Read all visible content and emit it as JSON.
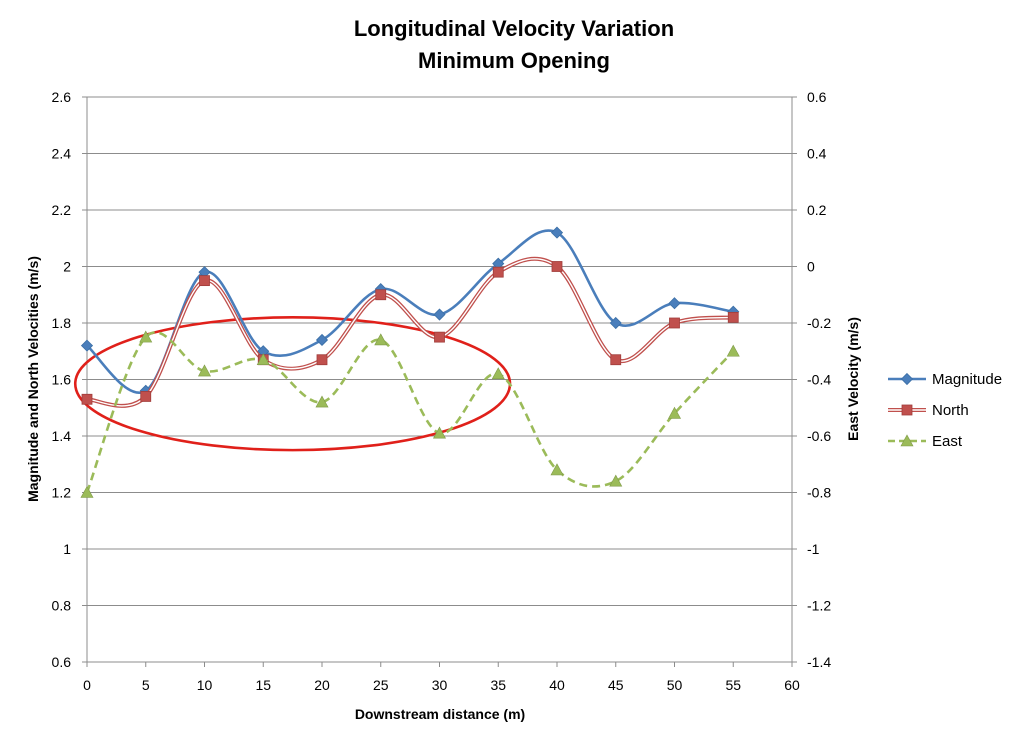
{
  "chart_data": {
    "type": "line",
    "title": [
      "Longitudinal Velocity Variation",
      "Minimum Opening"
    ],
    "xlabel": "Downstream distance (m)",
    "ylabel": "Magnitude and North Velocities (m/s)",
    "y2label": "East Velocity (m/s)",
    "xlim": [
      0,
      60
    ],
    "ylim": [
      0.6,
      2.6
    ],
    "y2lim": [
      -1.4,
      0.6
    ],
    "x_ticks": [
      0,
      5,
      10,
      15,
      20,
      25,
      30,
      35,
      40,
      45,
      50,
      55,
      60
    ],
    "y_ticks": [
      0.6,
      0.8,
      1,
      1.2,
      1.4,
      1.6,
      1.8,
      2,
      2.2,
      2.4,
      2.6
    ],
    "y2_ticks": [
      -1.4,
      -1.2,
      -1,
      -0.8,
      -0.6,
      -0.4,
      -0.2,
      0,
      0.2,
      0.4,
      0.6
    ],
    "x_tick_labels": [
      "0",
      "5",
      "10",
      "15",
      "20",
      "25",
      "30",
      "35",
      "40",
      "45",
      "50",
      "55",
      "60"
    ],
    "y_tick_labels": [
      "0.6",
      "0.8",
      "1",
      "1.2",
      "1.4",
      "1.6",
      "1.8",
      "2",
      "2.2",
      "2.4",
      "2.6"
    ],
    "y2_tick_labels": [
      "-1.4",
      "-1.2",
      "-1",
      "-0.8",
      "-0.6",
      "-0.4",
      "-0.2",
      "0",
      "0.2",
      "0.4",
      "0.6"
    ],
    "grid": "horizontal",
    "legend_position": "right",
    "series": [
      {
        "name": "Magnitude",
        "axis": "left",
        "marker": "diamond",
        "color": "#4a7ebb",
        "line_style": "solid",
        "x": [
          0,
          5,
          10,
          15,
          20,
          25,
          30,
          35,
          40,
          45,
          50,
          55
        ],
        "values": [
          1.72,
          1.56,
          1.98,
          1.7,
          1.74,
          1.92,
          1.83,
          2.01,
          2.12,
          1.8,
          1.87,
          1.84
        ]
      },
      {
        "name": "North",
        "axis": "left",
        "marker": "square",
        "color": "#c0504d",
        "line_style": "double",
        "x": [
          0,
          5,
          10,
          15,
          20,
          25,
          30,
          35,
          40,
          45,
          50,
          55
        ],
        "values": [
          1.53,
          1.54,
          1.95,
          1.67,
          1.67,
          1.9,
          1.75,
          1.98,
          2.0,
          1.67,
          1.8,
          1.82
        ]
      },
      {
        "name": "East",
        "axis": "right",
        "marker": "triangle",
        "color": "#9bbb59",
        "line_style": "dashed",
        "x": [
          0,
          5,
          10,
          15,
          20,
          25,
          30,
          35,
          40,
          45,
          50,
          55
        ],
        "values": [
          -0.8,
          -0.25,
          -0.37,
          -0.33,
          -0.48,
          -0.26,
          -0.59,
          -0.38,
          -0.72,
          -0.76,
          -0.52,
          -0.3
        ]
      }
    ],
    "annotations": [
      {
        "type": "ellipse",
        "color": "#e0201a",
        "cx": 17.5,
        "cy": 1.585,
        "rx": 18.5,
        "ry": 0.235
      }
    ]
  }
}
